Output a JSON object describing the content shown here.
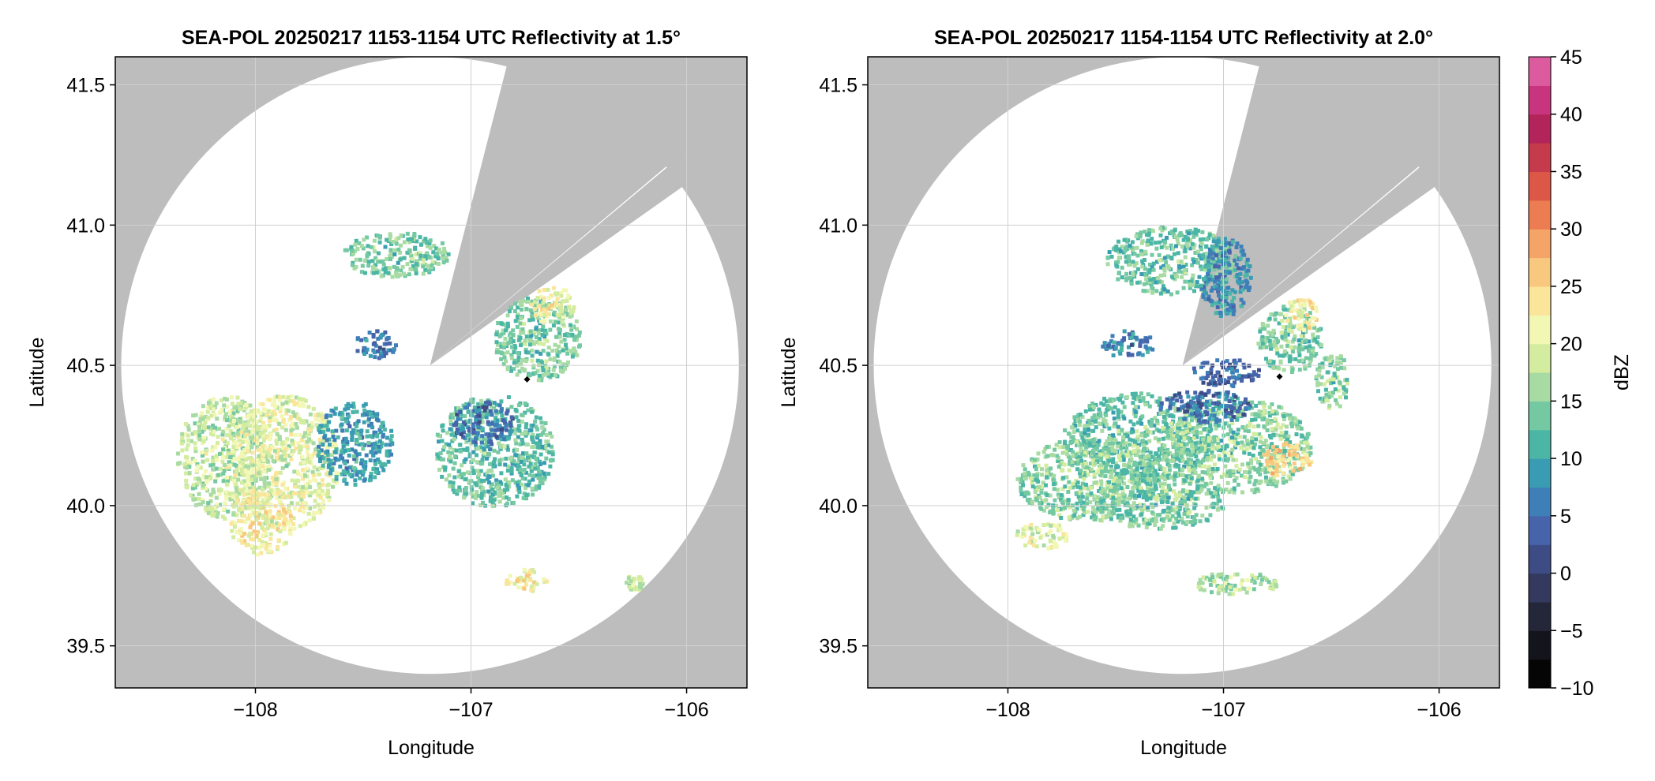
{
  "chart_data": [
    {
      "type": "heatmap",
      "title": "SEA-POL 20250217 1153-1154 UTC Reflectivity at 1.5°",
      "xlabel": "Longitude",
      "ylabel": "Latitude",
      "xlim": [
        -108.65,
        -105.72
      ],
      "ylim": [
        39.35,
        41.6
      ],
      "x_ticks": [
        -108,
        -107,
        -106
      ],
      "x_tick_labels": [
        "−108",
        "−107",
        "−106"
      ],
      "y_ticks": [
        39.5,
        40.0,
        40.5,
        41.0,
        41.5
      ],
      "y_tick_labels": [
        "39.5",
        "40.0",
        "40.5",
        "41.0",
        "41.5"
      ],
      "grid": true,
      "radar_center": {
        "lon": -107.19,
        "lat": 40.5
      },
      "marker": {
        "lon": -106.74,
        "lat": 40.45
      },
      "blocked_sectors": [
        {
          "from_lon": -106.85,
          "from_lat": 41.52
        },
        {
          "from_lon": -106.05,
          "from_lat": 41.12
        }
      ],
      "echo_regions": [
        {
          "lon": -108.15,
          "lat": 40.18,
          "rlon": 0.22,
          "rlat": 0.22,
          "dbz": 18
        },
        {
          "lon": -107.87,
          "lat": 40.16,
          "rlon": 0.25,
          "rlat": 0.24,
          "dbz": 20
        },
        {
          "lon": -107.98,
          "lat": 39.95,
          "rlon": 0.15,
          "rlat": 0.12,
          "dbz": 22
        },
        {
          "lon": -107.55,
          "lat": 40.23,
          "rlon": 0.18,
          "rlat": 0.15,
          "dbz": 9
        },
        {
          "lon": -106.9,
          "lat": 40.2,
          "rlon": 0.28,
          "rlat": 0.2,
          "dbz": 13
        },
        {
          "lon": -106.95,
          "lat": 40.3,
          "rlon": 0.14,
          "rlat": 0.08,
          "dbz": 5
        },
        {
          "lon": -107.45,
          "lat": 40.58,
          "rlon": 0.1,
          "rlat": 0.05,
          "dbz": 6
        },
        {
          "lon": -106.7,
          "lat": 40.6,
          "rlon": 0.2,
          "rlat": 0.15,
          "dbz": 14
        },
        {
          "lon": -106.63,
          "lat": 40.72,
          "rlon": 0.1,
          "rlat": 0.07,
          "dbz": 21
        },
        {
          "lon": -107.35,
          "lat": 40.9,
          "rlon": 0.25,
          "rlat": 0.08,
          "dbz": 14
        },
        {
          "lon": -106.75,
          "lat": 39.74,
          "rlon": 0.1,
          "rlat": 0.04,
          "dbz": 22
        },
        {
          "lon": -106.25,
          "lat": 39.73,
          "rlon": 0.04,
          "rlat": 0.03,
          "dbz": 18
        }
      ]
    },
    {
      "type": "heatmap",
      "title": "SEA-POL 20250217 1154-1154 UTC Reflectivity at 2.0°",
      "xlabel": "Longitude",
      "ylabel": "Latitude",
      "xlim": [
        -108.65,
        -105.72
      ],
      "ylim": [
        39.35,
        41.6
      ],
      "x_ticks": [
        -108,
        -107,
        -106
      ],
      "x_tick_labels": [
        "−108",
        "−107",
        "−106"
      ],
      "y_ticks": [
        39.5,
        40.0,
        40.5,
        41.0,
        41.5
      ],
      "y_tick_labels": [
        "39.5",
        "40.0",
        "40.5",
        "41.0",
        "41.5"
      ],
      "grid": true,
      "radar_center": {
        "lon": -107.19,
        "lat": 40.5
      },
      "marker": {
        "lon": -106.74,
        "lat": 40.46
      },
      "blocked_sectors": [
        {
          "from_lon": -106.85,
          "from_lat": 41.52
        },
        {
          "from_lon": -106.05,
          "from_lat": 41.12
        }
      ],
      "echo_regions": [
        {
          "lon": -107.4,
          "lat": 40.25,
          "rlon": 0.35,
          "rlat": 0.16,
          "dbz": 13
        },
        {
          "lon": -106.95,
          "lat": 40.22,
          "rlon": 0.35,
          "rlat": 0.17,
          "dbz": 15
        },
        {
          "lon": -106.72,
          "lat": 40.17,
          "rlon": 0.12,
          "rlat": 0.06,
          "dbz": 25
        },
        {
          "lon": -107.1,
          "lat": 40.36,
          "rlon": 0.22,
          "rlat": 0.06,
          "dbz": 5
        },
        {
          "lon": -107.62,
          "lat": 40.1,
          "rlon": 0.35,
          "rlat": 0.15,
          "dbz": 15
        },
        {
          "lon": -107.3,
          "lat": 40.02,
          "rlon": 0.3,
          "rlat": 0.1,
          "dbz": 14
        },
        {
          "lon": -106.7,
          "lat": 40.6,
          "rlon": 0.15,
          "rlat": 0.12,
          "dbz": 14
        },
        {
          "lon": -106.65,
          "lat": 40.69,
          "rlon": 0.08,
          "rlat": 0.06,
          "dbz": 23
        },
        {
          "lon": -107.0,
          "lat": 40.48,
          "rlon": 0.16,
          "rlat": 0.05,
          "dbz": 4
        },
        {
          "lon": -107.45,
          "lat": 40.58,
          "rlon": 0.12,
          "rlat": 0.05,
          "dbz": 7
        },
        {
          "lon": -107.25,
          "lat": 40.88,
          "rlon": 0.3,
          "rlat": 0.12,
          "dbz": 13
        },
        {
          "lon": -107.0,
          "lat": 40.82,
          "rlon": 0.12,
          "rlat": 0.14,
          "dbz": 8
        },
        {
          "lon": -106.5,
          "lat": 40.45,
          "rlon": 0.08,
          "rlat": 0.1,
          "dbz": 15
        },
        {
          "lon": -107.85,
          "lat": 39.9,
          "rlon": 0.12,
          "rlat": 0.05,
          "dbz": 20
        },
        {
          "lon": -106.95,
          "lat": 39.73,
          "rlon": 0.2,
          "rlat": 0.04,
          "dbz": 17
        }
      ]
    }
  ],
  "colorbar": {
    "label": "dBZ",
    "min": -10,
    "max": 45,
    "step": 2.5,
    "ticks": [
      45,
      40,
      35,
      30,
      25,
      20,
      15,
      10,
      5,
      0,
      -5,
      -10
    ],
    "tick_labels": [
      "45",
      "40",
      "35",
      "30",
      "25",
      "20",
      "15",
      "10",
      "5",
      "0",
      "−5",
      "−10"
    ],
    "colors": [
      "#050505",
      "#14141c",
      "#24263a",
      "#333a5e",
      "#3e4c86",
      "#4764ab",
      "#3f7fb8",
      "#3a9cb3",
      "#4cb6a6",
      "#75c9a2",
      "#a7dba3",
      "#d3ec9f",
      "#f3f7b4",
      "#fae59b",
      "#f9c87f",
      "#f5a467",
      "#ec7c52",
      "#dd5746",
      "#c53b4b",
      "#b2245a",
      "#c9347e",
      "#dc5b9f",
      "#ea86bd",
      "#efaed4",
      "#c9a4d0",
      "#a27bbf",
      "#7a4aa1",
      "#5b2480",
      "#3f0c5c"
    ]
  },
  "colors": {
    "blocked": "#bdbdbd",
    "sweep": "#ffffff",
    "grid": "#d0d0d0",
    "marker": "#000000"
  }
}
